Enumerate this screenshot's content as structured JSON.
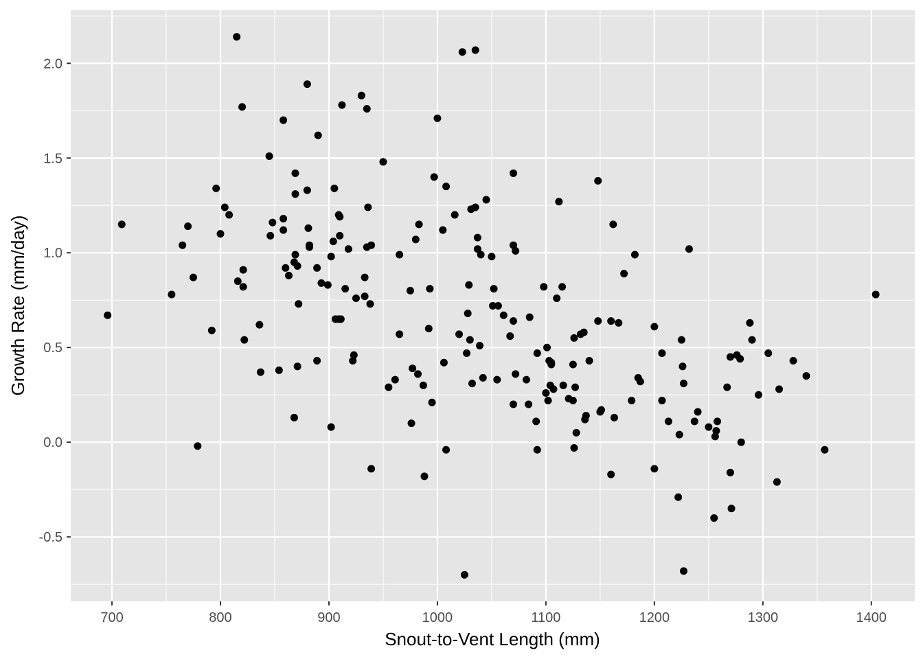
{
  "chart_data": {
    "type": "scatter",
    "title": "",
    "xlabel": "Snout-to-Vent Length (mm)",
    "ylabel": "Growth Rate (mm/day)",
    "xlim": [
      662,
      1440
    ],
    "ylim": [
      -0.84,
      2.28
    ],
    "x_ticks": [
      700,
      800,
      900,
      1000,
      1100,
      1200,
      1300,
      1400
    ],
    "x_tick_labels": [
      "700",
      "800",
      "900",
      "1000",
      "1100",
      "1200",
      "1300",
      "1400"
    ],
    "y_ticks": [
      -0.5,
      0.0,
      0.5,
      1.0,
      1.5,
      2.0
    ],
    "y_tick_labels": [
      "-0.5",
      "0.0",
      "0.5",
      "1.0",
      "1.5",
      "2.0"
    ],
    "grid": true,
    "legend": "none",
    "colors": {
      "panel": "#e5e5e5",
      "grid": "#ffffff",
      "point": "#000000",
      "tick": "#333333",
      "tick_label": "#4d4d4d",
      "axis_title": "#000000"
    },
    "points": [
      [
        696,
        0.67
      ],
      [
        709,
        1.15
      ],
      [
        755,
        0.78
      ],
      [
        765,
        1.04
      ],
      [
        770,
        1.14
      ],
      [
        775,
        0.87
      ],
      [
        779,
        -0.02
      ],
      [
        792,
        0.59
      ],
      [
        796,
        1.34
      ],
      [
        800,
        1.1
      ],
      [
        804,
        1.24
      ],
      [
        808,
        1.2
      ],
      [
        815,
        2.14
      ],
      [
        816,
        0.85
      ],
      [
        820,
        1.77
      ],
      [
        821,
        0.82
      ],
      [
        821,
        0.91
      ],
      [
        822,
        0.54
      ],
      [
        836,
        0.62
      ],
      [
        837,
        0.37
      ],
      [
        845,
        1.51
      ],
      [
        846,
        1.09
      ],
      [
        848,
        1.16
      ],
      [
        854,
        0.38
      ],
      [
        858,
        1.18
      ],
      [
        858,
        1.7
      ],
      [
        858,
        1.12
      ],
      [
        860,
        0.92
      ],
      [
        863,
        0.88
      ],
      [
        868,
        0.13
      ],
      [
        868,
        0.95
      ],
      [
        869,
        1.31
      ],
      [
        869,
        1.42
      ],
      [
        869,
        0.99
      ],
      [
        871,
        0.93
      ],
      [
        871,
        0.4
      ],
      [
        872,
        0.73
      ],
      [
        880,
        1.89
      ],
      [
        880,
        1.33
      ],
      [
        881,
        1.13
      ],
      [
        882,
        1.04
      ],
      [
        882,
        1.03
      ],
      [
        889,
        0.92
      ],
      [
        889,
        0.43
      ],
      [
        890,
        1.62
      ],
      [
        893,
        0.84
      ],
      [
        899,
        0.83
      ],
      [
        902,
        0.98
      ],
      [
        902,
        0.08
      ],
      [
        904,
        1.06
      ],
      [
        905,
        1.34
      ],
      [
        906,
        0.65
      ],
      [
        909,
        0.65
      ],
      [
        909,
        1.2
      ],
      [
        910,
        1.09
      ],
      [
        910,
        1.19
      ],
      [
        911,
        0.65
      ],
      [
        912,
        1.78
      ],
      [
        915,
        0.81
      ],
      [
        918,
        1.02
      ],
      [
        922,
        0.43
      ],
      [
        923,
        0.46
      ],
      [
        925,
        0.76
      ],
      [
        930,
        1.83
      ],
      [
        933,
        0.87
      ],
      [
        933,
        0.77
      ],
      [
        935,
        1.76
      ],
      [
        935,
        1.03
      ],
      [
        936,
        1.24
      ],
      [
        938,
        0.73
      ],
      [
        939,
        1.04
      ],
      [
        939,
        -0.14
      ],
      [
        950,
        1.48
      ],
      [
        955,
        0.29
      ],
      [
        961,
        0.33
      ],
      [
        965,
        0.99
      ],
      [
        965,
        0.57
      ],
      [
        975,
        0.8
      ],
      [
        976,
        0.1
      ],
      [
        977,
        0.39
      ],
      [
        980,
        1.07
      ],
      [
        982,
        0.36
      ],
      [
        983,
        1.15
      ],
      [
        987,
        0.3
      ],
      [
        988,
        -0.18
      ],
      [
        992,
        0.6
      ],
      [
        993,
        0.81
      ],
      [
        995,
        0.21
      ],
      [
        997,
        1.4
      ],
      [
        1000,
        1.71
      ],
      [
        1005,
        1.12
      ],
      [
        1006,
        0.42
      ],
      [
        1008,
        1.35
      ],
      [
        1008,
        -0.04
      ],
      [
        1016,
        1.2
      ],
      [
        1020,
        0.57
      ],
      [
        1023,
        2.06
      ],
      [
        1025,
        -0.7
      ],
      [
        1027,
        0.47
      ],
      [
        1028,
        0.68
      ],
      [
        1029,
        0.83
      ],
      [
        1030,
        0.54
      ],
      [
        1031,
        1.23
      ],
      [
        1032,
        0.31
      ],
      [
        1035,
        1.24
      ],
      [
        1035,
        2.07
      ],
      [
        1037,
        1.08
      ],
      [
        1037,
        1.02
      ],
      [
        1039,
        0.51
      ],
      [
        1040,
        0.99
      ],
      [
        1042,
        0.34
      ],
      [
        1045,
        1.28
      ],
      [
        1050,
        0.98
      ],
      [
        1051,
        0.72
      ],
      [
        1052,
        0.81
      ],
      [
        1055,
        0.33
      ],
      [
        1056,
        0.72
      ],
      [
        1061,
        0.67
      ],
      [
        1067,
        0.56
      ],
      [
        1070,
        1.42
      ],
      [
        1070,
        1.04
      ],
      [
        1070,
        0.64
      ],
      [
        1070,
        0.2
      ],
      [
        1072,
        1.01
      ],
      [
        1072,
        0.36
      ],
      [
        1082,
        0.33
      ],
      [
        1084,
        0.2
      ],
      [
        1085,
        0.66
      ],
      [
        1091,
        0.11
      ],
      [
        1092,
        -0.04
      ],
      [
        1092,
        0.47
      ],
      [
        1098,
        0.82
      ],
      [
        1100,
        0.26
      ],
      [
        1101,
        0.5
      ],
      [
        1102,
        0.22
      ],
      [
        1103,
        0.43
      ],
      [
        1104,
        0.3
      ],
      [
        1105,
        0.41
      ],
      [
        1105,
        0.42
      ],
      [
        1107,
        0.28
      ],
      [
        1110,
        0.76
      ],
      [
        1112,
        1.27
      ],
      [
        1115,
        0.82
      ],
      [
        1116,
        0.3
      ],
      [
        1121,
        0.23
      ],
      [
        1125,
        0.22
      ],
      [
        1125,
        0.41
      ],
      [
        1126,
        0.55
      ],
      [
        1126,
        -0.03
      ],
      [
        1127,
        0.29
      ],
      [
        1128,
        0.05
      ],
      [
        1132,
        0.57
      ],
      [
        1135,
        0.58
      ],
      [
        1136,
        0.12
      ],
      [
        1137,
        0.14
      ],
      [
        1140,
        0.43
      ],
      [
        1148,
        0.64
      ],
      [
        1148,
        1.38
      ],
      [
        1150,
        0.16
      ],
      [
        1151,
        0.17
      ],
      [
        1160,
        -0.17
      ],
      [
        1160,
        0.64
      ],
      [
        1162,
        1.15
      ],
      [
        1163,
        0.13
      ],
      [
        1167,
        0.63
      ],
      [
        1172,
        0.89
      ],
      [
        1179,
        0.22
      ],
      [
        1182,
        0.99
      ],
      [
        1185,
        0.34
      ],
      [
        1187,
        0.32
      ],
      [
        1200,
        0.61
      ],
      [
        1200,
        -0.14
      ],
      [
        1207,
        0.47
      ],
      [
        1207,
        0.22
      ],
      [
        1213,
        0.11
      ],
      [
        1222,
        -0.29
      ],
      [
        1223,
        0.04
      ],
      [
        1225,
        0.54
      ],
      [
        1226,
        0.4
      ],
      [
        1227,
        0.31
      ],
      [
        1227,
        -0.68
      ],
      [
        1232,
        1.02
      ],
      [
        1237,
        0.11
      ],
      [
        1240,
        0.16
      ],
      [
        1250,
        0.08
      ],
      [
        1255,
        -0.4
      ],
      [
        1256,
        0.03
      ],
      [
        1257,
        0.06
      ],
      [
        1258,
        0.11
      ],
      [
        1267,
        0.29
      ],
      [
        1270,
        0.45
      ],
      [
        1270,
        -0.16
      ],
      [
        1271,
        -0.35
      ],
      [
        1276,
        0.46
      ],
      [
        1279,
        0.44
      ],
      [
        1280,
        0.0
      ],
      [
        1288,
        0.63
      ],
      [
        1290,
        0.54
      ],
      [
        1296,
        0.25
      ],
      [
        1305,
        0.47
      ],
      [
        1313,
        -0.21
      ],
      [
        1315,
        0.28
      ],
      [
        1328,
        0.43
      ],
      [
        1340,
        0.35
      ],
      [
        1357,
        -0.04
      ],
      [
        1404,
        0.78
      ]
    ]
  }
}
